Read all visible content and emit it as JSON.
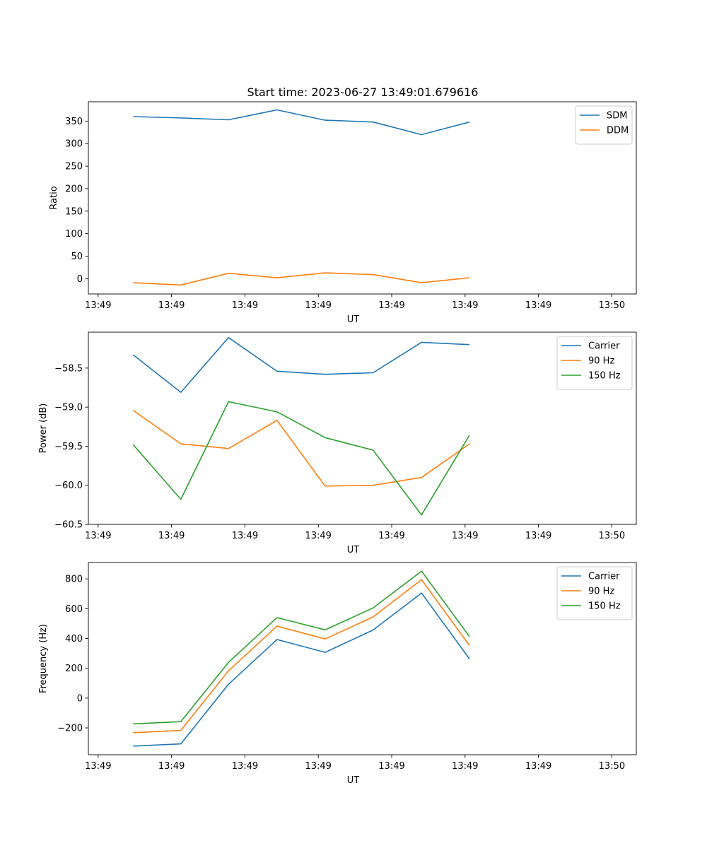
{
  "figure": {
    "title": "Start time: 2023-06-27 13:49:01.679616"
  },
  "chart_data": [
    {
      "type": "line",
      "title": "Start time: 2023-06-27 13:49:01.679616",
      "xlabel": "UT",
      "ylabel": "Ratio",
      "x_tick_labels": [
        "13:49",
        "13:49",
        "13:49",
        "13:49",
        "13:49",
        "13:49",
        "13:49",
        "13:50"
      ],
      "x_tick_seconds": [
        1,
        4,
        7,
        10,
        13,
        16,
        19,
        22
      ],
      "xlim_seconds": [
        0.6,
        23.0
      ],
      "x_seconds": [
        2.43,
        4.38,
        6.33,
        8.31,
        10.28,
        12.24,
        14.22,
        16.18
      ],
      "ylim": [
        -34,
        393
      ],
      "yticks": [
        0,
        50,
        100,
        150,
        200,
        250,
        300,
        350
      ],
      "ytick_labels": [
        "0",
        "50",
        "100",
        "150",
        "200",
        "250",
        "300",
        "350"
      ],
      "legend_position": "upper right",
      "grid": false,
      "series": [
        {
          "name": "SDM",
          "color": "#1f77b4",
          "values": [
            360,
            357,
            353,
            375,
            352,
            348,
            320,
            348
          ]
        },
        {
          "name": "DDM",
          "color": "#ff7f0e",
          "values": [
            -9,
            -14,
            12,
            2,
            13,
            9,
            -9,
            2
          ]
        }
      ]
    },
    {
      "type": "line",
      "title": "",
      "xlabel": "UT",
      "ylabel": "Power (dB)",
      "x_tick_labels": [
        "13:49",
        "13:49",
        "13:49",
        "13:49",
        "13:49",
        "13:49",
        "13:49",
        "13:50"
      ],
      "x_tick_seconds": [
        1,
        4,
        7,
        10,
        13,
        16,
        19,
        22
      ],
      "xlim_seconds": [
        0.6,
        23.0
      ],
      "x_seconds": [
        2.43,
        4.38,
        6.33,
        8.31,
        10.28,
        12.24,
        14.22,
        16.18
      ],
      "ylim": [
        -60.5,
        -58.04
      ],
      "yticks": [
        -60.5,
        -60.0,
        -59.5,
        -59.0,
        -58.5
      ],
      "ytick_labels": [
        "−60.5",
        "−60.0",
        "−59.5",
        "−59.0",
        "−58.5"
      ],
      "legend_position": "upper right",
      "grid": false,
      "series": [
        {
          "name": "Carrier",
          "color": "#1f77b4",
          "values": [
            -58.33,
            -58.81,
            -58.11,
            -58.54,
            -58.58,
            -58.56,
            -58.17,
            -58.2
          ]
        },
        {
          "name": "90 Hz",
          "color": "#ff7f0e",
          "values": [
            -59.04,
            -59.47,
            -59.53,
            -59.17,
            -60.01,
            -60.0,
            -59.9,
            -59.47
          ]
        },
        {
          "name": "150 Hz",
          "color": "#2ca02c",
          "values": [
            -59.48,
            -60.18,
            -58.93,
            -59.06,
            -59.39,
            -59.55,
            -60.38,
            -59.36
          ]
        }
      ]
    },
    {
      "type": "line",
      "title": "",
      "xlabel": "UT",
      "ylabel": "Frequency (Hz)",
      "x_tick_labels": [
        "13:49",
        "13:49",
        "13:49",
        "13:49",
        "13:49",
        "13:49",
        "13:49",
        "13:50"
      ],
      "x_tick_seconds": [
        1,
        4,
        7,
        10,
        13,
        16,
        19,
        22
      ],
      "xlim_seconds": [
        0.6,
        23.0
      ],
      "x_seconds": [
        2.43,
        4.38,
        6.33,
        8.31,
        10.28,
        12.24,
        14.22,
        16.18
      ],
      "ylim": [
        -380,
        910
      ],
      "yticks": [
        -200,
        0,
        200,
        400,
        600,
        800
      ],
      "ytick_labels": [
        "−200",
        "0",
        "200",
        "400",
        "600",
        "800"
      ],
      "legend_position": "upper right",
      "grid": false,
      "series": [
        {
          "name": "Carrier",
          "color": "#1f77b4",
          "values": [
            -322,
            -307,
            93,
            393,
            307,
            457,
            705,
            263
          ]
        },
        {
          "name": "90 Hz",
          "color": "#ff7f0e",
          "values": [
            -232,
            -217,
            183,
            483,
            397,
            545,
            795,
            353
          ]
        },
        {
          "name": "150 Hz",
          "color": "#2ca02c",
          "values": [
            -173,
            -158,
            240,
            540,
            458,
            605,
            852,
            413
          ]
        }
      ]
    }
  ]
}
